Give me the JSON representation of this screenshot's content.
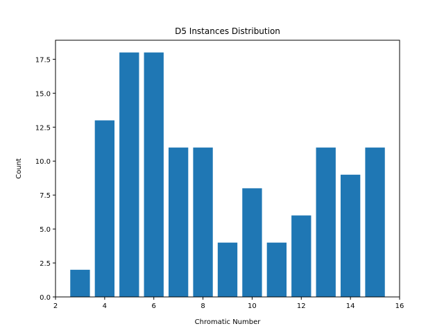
{
  "chart_data": {
    "type": "bar",
    "title": "D5 Instances Distribution",
    "xlabel": "Chromatic Number",
    "ylabel": "Count",
    "x": [
      3,
      4,
      5,
      6,
      7,
      8,
      9,
      10,
      11,
      12,
      13,
      14,
      15
    ],
    "values": [
      2,
      13,
      18,
      18,
      11,
      11,
      4,
      8,
      4,
      6,
      11,
      9,
      11
    ],
    "bar_width": 0.8,
    "xlim": [
      2,
      16
    ],
    "ylim": [
      0,
      18.9
    ],
    "xticks": [
      2,
      4,
      6,
      8,
      10,
      12,
      14,
      16
    ],
    "xtick_labels": [
      "2",
      "4",
      "6",
      "8",
      "10",
      "12",
      "14",
      "16"
    ],
    "yticks": [
      0,
      2.5,
      5,
      7.5,
      10,
      12.5,
      15,
      17.5
    ],
    "ytick_labels": [
      "0.0",
      "2.5",
      "5.0",
      "7.5",
      "10.0",
      "12.5",
      "15.0",
      "17.5"
    ],
    "grid": false,
    "bar_color": "#1f77b4"
  }
}
